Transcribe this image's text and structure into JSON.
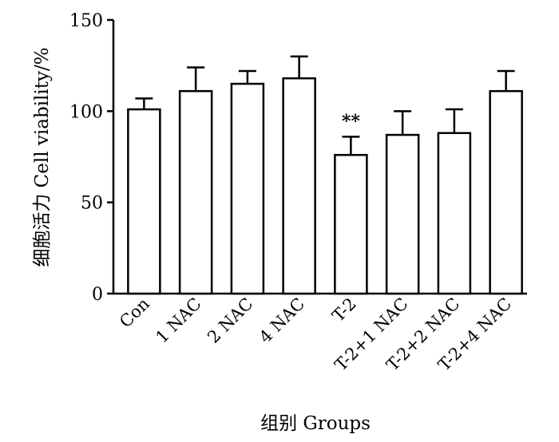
{
  "chart_data": {
    "type": "bar",
    "categories": [
      "Con",
      "1 NAC",
      "2 NAC",
      "4 NAC",
      "T-2",
      "T-2+1 NAC",
      "T-2+2 NAC",
      "T-2+4 NAC"
    ],
    "values": [
      101,
      111,
      115,
      118,
      76,
      87,
      88,
      111
    ],
    "errors": [
      6,
      13,
      7,
      12,
      10,
      13,
      13,
      11
    ],
    "xlabel": "组别  Groups",
    "ylabel": "细胞活力  Cell viability/%",
    "ylim": [
      0,
      150
    ],
    "yticks": [
      0,
      50,
      100,
      150
    ],
    "grid": false,
    "bar_fill": "#ffffff",
    "bar_stroke": "#000000",
    "annotations": [
      {
        "category": "T-2",
        "text": "**"
      }
    ]
  }
}
